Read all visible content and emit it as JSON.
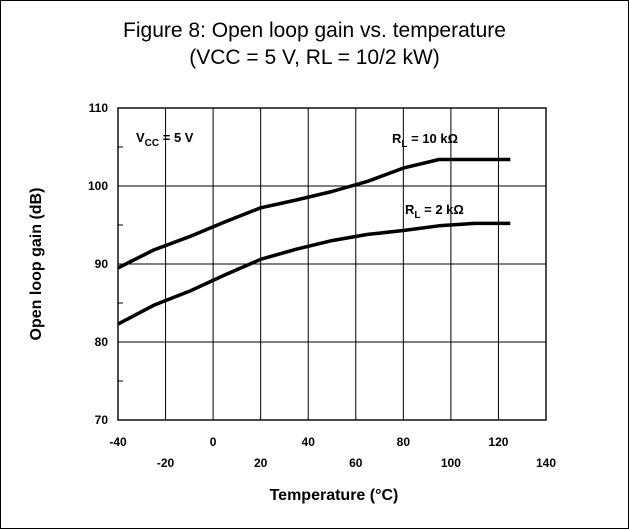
{
  "figure": {
    "title_line1": "Figure 8: Open loop gain vs. temperature",
    "title_line2": "(VCC = 5 V, RL = 10/2 kW)"
  },
  "chart_data": {
    "type": "line",
    "xlabel": "Temperature (°C)",
    "ylabel": "Open loop gain (dB)",
    "xlim": [
      -40,
      140
    ],
    "ylim": [
      70,
      110
    ],
    "x_ticks_upper": [
      "-40",
      "0",
      "40",
      "80",
      "120"
    ],
    "x_ticks_lower": [
      "-20",
      "20",
      "60",
      "100",
      "140"
    ],
    "y_ticks": [
      "110",
      "100",
      "90",
      "80",
      "70"
    ],
    "grid": true,
    "annotations": {
      "vcc": {
        "main": "V",
        "sub": "CC",
        "rest": " = 5 V"
      },
      "rl10": {
        "main": "R",
        "sub": "L",
        "rest": " = 10 kΩ"
      },
      "rl2": {
        "main": "R",
        "sub": "L",
        "rest": " = 2 kΩ"
      }
    },
    "series": [
      {
        "x": [
          -40,
          -25,
          -10,
          5,
          20,
          35,
          50,
          65,
          80,
          95,
          110,
          125
        ],
        "y": [
          89.5,
          91.8,
          93.5,
          95.4,
          97.2,
          98.2,
          99.3,
          100.6,
          102.3,
          103.4,
          103.4,
          103.4
        ]
      },
      {
        "x": [
          -40,
          -25,
          -10,
          5,
          20,
          35,
          50,
          65,
          80,
          95,
          110,
          125
        ],
        "y": [
          82.3,
          84.7,
          86.5,
          88.6,
          90.6,
          91.9,
          93.0,
          93.8,
          94.3,
          94.9,
          95.2,
          95.2
        ]
      }
    ]
  }
}
